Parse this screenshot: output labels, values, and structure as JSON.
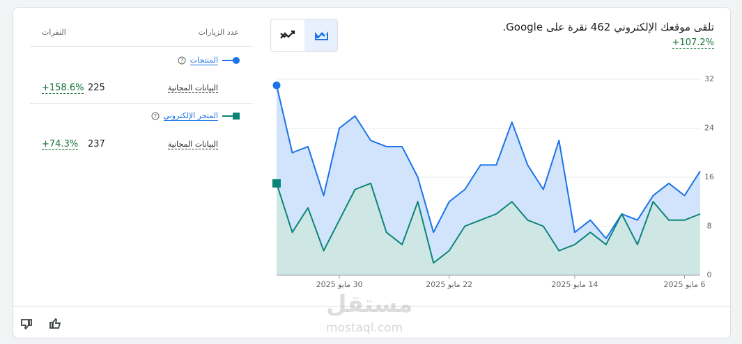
{
  "header": {
    "title": "تلقى موقعك الإلكتروني 462 نقرة على Google.",
    "change": "+107.2%"
  },
  "table": {
    "columns": [
      "النقرات",
      "عدد الزيارات"
    ],
    "groups": [
      {
        "series": "المنتجات",
        "rows": [
          {
            "label": "البيانات المجانية",
            "value": 225,
            "change": "+158.6%"
          }
        ]
      },
      {
        "series": "المتجر الإلكتروني",
        "rows": [
          {
            "label": "البيانات المجانية",
            "value": 237,
            "change": "+74.3%"
          }
        ]
      }
    ]
  },
  "chart_data": {
    "type": "area",
    "categories": [
      null,
      null,
      null,
      null,
      "30 مايو 2025",
      null,
      null,
      null,
      null,
      null,
      null,
      "22 مايو 2025",
      null,
      null,
      null,
      null,
      null,
      null,
      null,
      "14 مايو 2025",
      null,
      null,
      null,
      null,
      null,
      null,
      "6 مايو 2025",
      null
    ],
    "series": [
      {
        "name": "المنتجات",
        "color": "#1a73e8",
        "fill": "#d2e3fc",
        "values": [
          31,
          20,
          21,
          13,
          24,
          26,
          22,
          21,
          21,
          16,
          7,
          12,
          14,
          18,
          18,
          25,
          18,
          14,
          22,
          7,
          9,
          6,
          10,
          9,
          13,
          15,
          13,
          17
        ]
      },
      {
        "name": "المتجر الإلكتروني",
        "color": "#0b8577",
        "fill": "#cde7e1",
        "values": [
          15,
          7,
          11,
          4,
          9,
          14,
          15,
          7,
          5,
          12,
          2,
          4,
          8,
          9,
          10,
          12,
          9,
          8,
          4,
          5,
          7,
          5,
          10,
          5,
          12,
          9,
          9,
          10
        ]
      }
    ],
    "ylim": [
      0,
      32
    ],
    "yticks": [
      0,
      8,
      16,
      24,
      32
    ],
    "grid": true
  },
  "watermark": {
    "name": "مستقل",
    "url": "mostaql.com"
  }
}
